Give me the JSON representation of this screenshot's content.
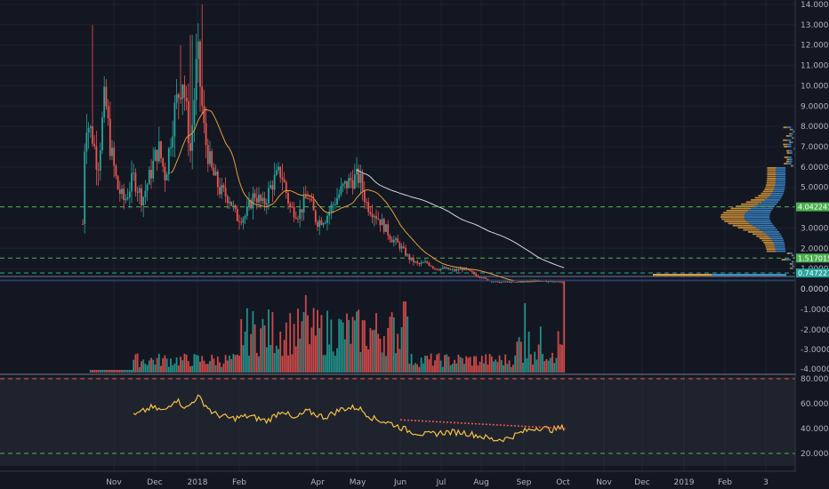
{
  "chart_data": {
    "type": "candlestick",
    "x_labels": [
      "Nov",
      "Dec",
      "2018",
      "Feb",
      "Apr",
      "May",
      "Jun",
      "Jul",
      "Aug",
      "Sep",
      "Oct",
      "Nov",
      "Dec",
      "2019",
      "Feb",
      "3"
    ],
    "price_axis": {
      "ticks": [
        "14.000000",
        "13.000000",
        "12.000000",
        "11.000000",
        "10.000000",
        "9.000000",
        "8.000000",
        "7.000000",
        "6.000000",
        "5.000000",
        "3.000000",
        "2.000000",
        "1.000000",
        "0.000000"
      ],
      "ylim": [
        0,
        14
      ]
    },
    "volume_axis": {
      "ticks": [
        "0.000000",
        "-1.000000",
        "-2.000000",
        "-3.000000",
        "-4.000000"
      ]
    },
    "rsi_axis": {
      "ticks": [
        "80.0000",
        "60.0000",
        "40.0000",
        "20.0000"
      ],
      "ylim": [
        20,
        80
      ],
      "overbought": 80,
      "oversold": 20
    },
    "price_tags": [
      {
        "label": "4.042241",
        "value": 4.04,
        "color": "#4caf50"
      },
      {
        "label": "1.517015",
        "value": 1.52,
        "color": "#4caf50"
      },
      {
        "label": "0.747227",
        "value": 0.75,
        "color": "#26a69a"
      }
    ],
    "last_price": 0.33,
    "ma_short_color": "#e39d3c",
    "ma_long_color": "#d1d4dc",
    "rsi_color": "#f6c244",
    "divergence_color": "#ef5350",
    "up_color": "#26a69a",
    "down_color": "#ef5350"
  }
}
